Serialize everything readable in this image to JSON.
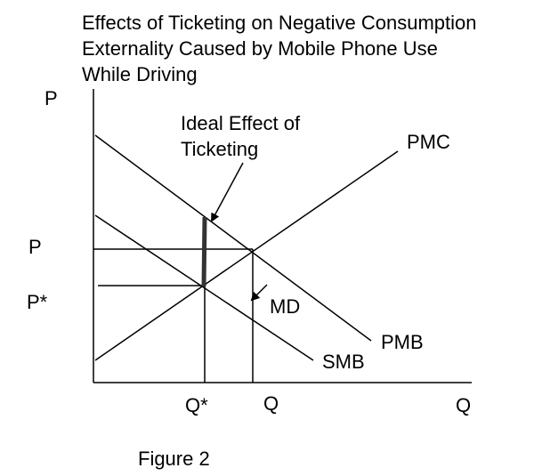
{
  "title_lines": [
    "Effects of Ticketing on Negative Consumption",
    "Externality Caused by Mobile Phone Use",
    "While Driving"
  ],
  "axes": {
    "y_label": "P",
    "x_label": "Q",
    "y_ticks": [
      "P",
      "P*"
    ],
    "x_ticks": [
      "Q*",
      "Q"
    ]
  },
  "curves": {
    "pmc": "PMC",
    "pmb": "PMB",
    "smb": "SMB",
    "md": "MD"
  },
  "annotation": {
    "line1": "Ideal Effect of",
    "line2": "Ticketing"
  },
  "caption": "Figure 2"
}
